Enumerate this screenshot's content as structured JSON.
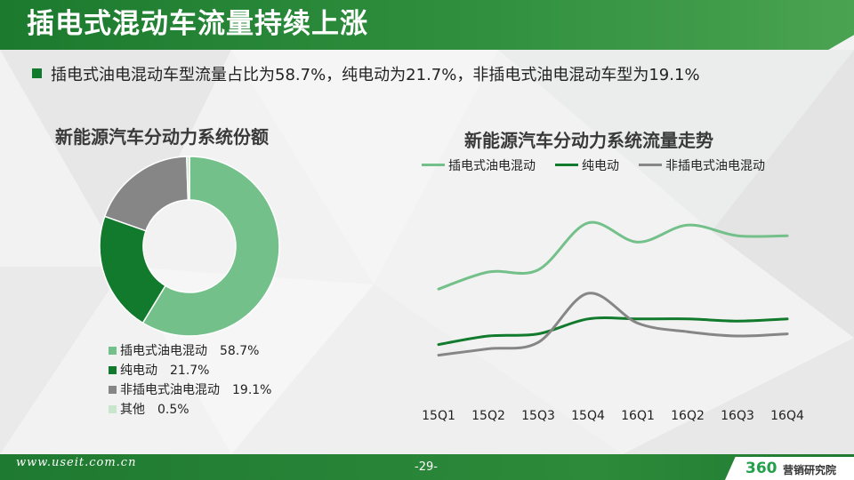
{
  "header": {
    "title": "插电式混动车流量持续上涨"
  },
  "summary": {
    "text": "插电式油电混动车型流量占比为58.7%，纯电动为21.7%，非插电式油电混动车型为19.1%"
  },
  "colors": {
    "phev": "#74c08a",
    "ev": "#117a2c",
    "hev": "#868686",
    "other": "#c8e6cc"
  },
  "chart_data": [
    {
      "type": "pie",
      "title": "新能源汽车分动力系统份额",
      "donut": true,
      "slices": [
        {
          "name": "插电式油电混动",
          "value": 58.7,
          "label": "58.7%"
        },
        {
          "name": "纯电动",
          "value": 21.7,
          "label": "21.7%"
        },
        {
          "name": "非插电式油电混动",
          "value": 19.1,
          "label": "19.1%"
        },
        {
          "name": "其他",
          "value": 0.5,
          "label": "0.5%"
        }
      ]
    },
    {
      "type": "line",
      "title": "新能源汽车分动力系统流量走势",
      "categories": [
        "15Q1",
        "15Q2",
        "15Q3",
        "15Q4",
        "16Q1",
        "16Q2",
        "16Q3",
        "16Q4"
      ],
      "ylim": [
        0,
        100
      ],
      "series": [
        {
          "name": "插电式油电混动",
          "values": [
            52,
            60,
            61,
            83,
            74,
            82,
            77,
            77
          ]
        },
        {
          "name": "纯电动",
          "values": [
            26,
            30,
            31,
            38,
            38,
            38,
            37,
            38
          ]
        },
        {
          "name": "非插电式油电混动",
          "values": [
            21,
            24,
            27,
            50,
            36,
            32,
            30,
            31
          ]
        }
      ]
    }
  ],
  "footer": {
    "url": "www.useit.com.cn",
    "page": "-29-",
    "logo_num": "360",
    "logo_text": "营销研究院"
  }
}
